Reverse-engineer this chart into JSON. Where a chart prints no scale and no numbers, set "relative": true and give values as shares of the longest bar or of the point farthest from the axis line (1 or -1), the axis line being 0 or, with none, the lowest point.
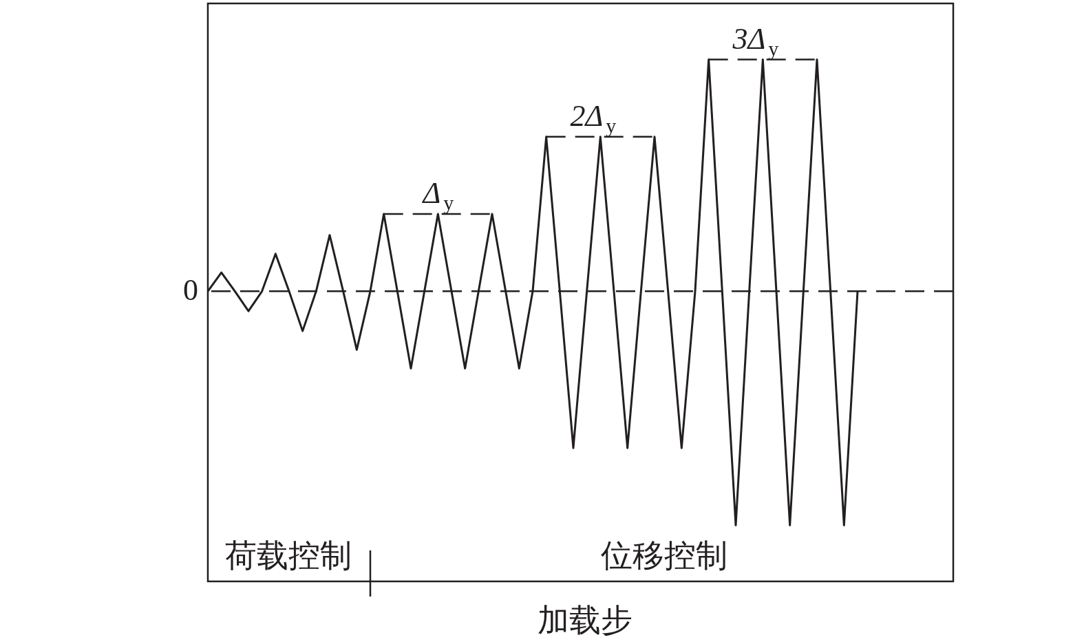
{
  "chart_data": {
    "type": "line",
    "relative": true,
    "xlabel": "加载步",
    "categories": [
      null,
      null,
      null,
      null,
      null,
      null,
      null,
      null,
      null,
      null,
      null,
      null,
      null,
      null,
      null,
      null,
      null,
      null,
      null,
      null,
      null,
      null,
      null,
      null,
      null,
      null,
      null,
      null,
      null,
      null,
      null,
      null,
      null,
      null,
      null,
      null,
      null,
      null,
      null,
      null,
      null,
      null,
      null,
      null,
      null,
      null,
      null,
      null,
      null
    ],
    "series": [
      {
        "color": "#231f20",
        "values": [
          0,
          0.08,
          0,
          -0.085,
          0,
          0.16,
          0,
          -0.17,
          0,
          0.24,
          0,
          -0.25,
          0,
          0.33,
          0,
          -0.33,
          0,
          0.33,
          0,
          -0.33,
          0,
          0.33,
          0,
          -0.33,
          0,
          0.66,
          0,
          -0.67,
          0,
          0.66,
          0,
          -0.67,
          0,
          0.66,
          0,
          -0.67,
          0,
          0.99,
          0,
          -1,
          0,
          0.99,
          0,
          -1,
          0,
          0.99,
          0,
          -1,
          0
        ]
      }
    ],
    "ref_lines": [
      {
        "axis": "y",
        "value": 0,
        "label": "0",
        "line_style": "dashed"
      }
    ],
    "annotations": [
      "Δ$_{y}$",
      "2Δ$_{y}$",
      "3Δ$_{y}$",
      "荷载控制",
      "位移控制"
    ]
  }
}
